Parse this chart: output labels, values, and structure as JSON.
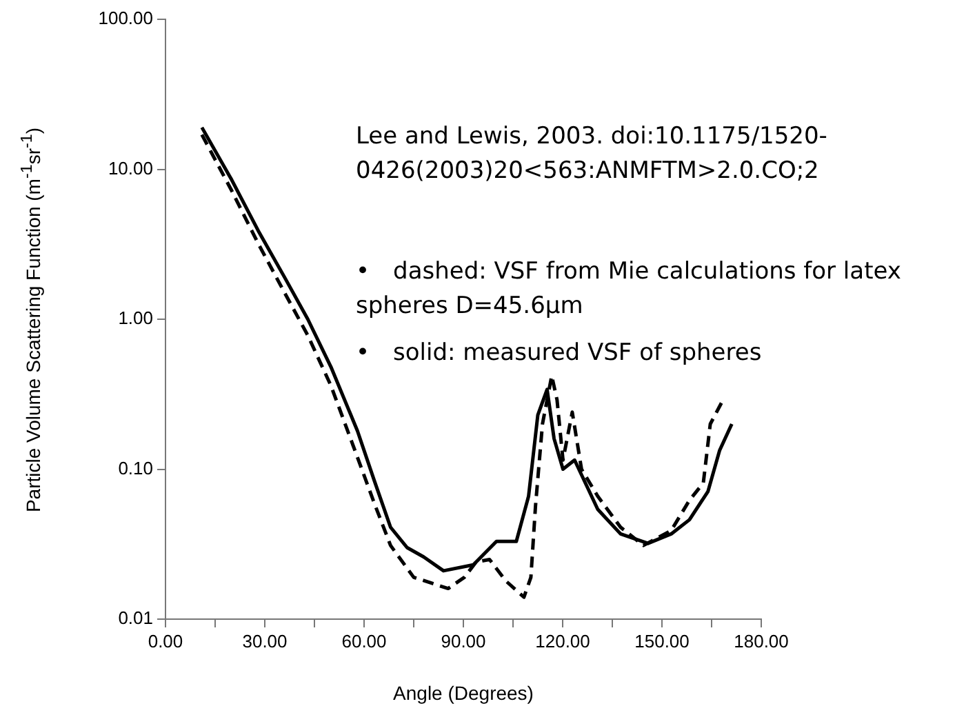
{
  "chart_data": {
    "type": "line",
    "xlabel": "Angle (Degrees)",
    "ylabel": "Particle Volume Scattering Function (m$^{-1}$sr$^{-1}$)",
    "annotations": [
      "Lee and Lewis, 2003.  doi:10.1175/1520-0426(2003)20<563:ANMFTM>2.0.CO;2",
      "• dashed: VSF from Mie calculations for latex spheres D=45.6μm",
      "• solid: measured VSF of spheres"
    ],
    "log": "y",
    "grid": false,
    "legend": false,
    "marker": "none",
    "xlim": [
      0,
      180
    ],
    "xticks": [
      {
        "value": 0,
        "label": "0.00"
      },
      {
        "value": 15,
        "label": null
      },
      {
        "value": 30,
        "label": "30.00"
      },
      {
        "value": 45,
        "label": null
      },
      {
        "value": 60,
        "label": "60.00"
      },
      {
        "value": 75,
        "label": null
      },
      {
        "value": 90,
        "label": "90.00"
      },
      {
        "value": 105,
        "label": null
      },
      {
        "value": 120,
        "label": "120.00"
      },
      {
        "value": 135,
        "label": null
      },
      {
        "value": 150,
        "label": "150.00"
      },
      {
        "value": 165,
        "label": null
      },
      {
        "value": 180,
        "label": "180.00"
      }
    ],
    "ylim": [
      0.01,
      100
    ],
    "yticks": [
      {
        "value": 0.01,
        "label": "0.01"
      },
      {
        "value": 0.1,
        "label": "0.10"
      },
      {
        "value": 1,
        "label": "1.00"
      },
      {
        "value": 10,
        "label": "10.00"
      },
      {
        "value": 100,
        "label": "100.00"
      }
    ],
    "series": [
      {
        "color": "#000000",
        "line_style": "solid",
        "x": [
          11,
          20,
          28,
          36,
          43,
          50,
          58,
          63,
          68,
          73,
          78,
          84,
          93,
          100,
          106,
          109.7,
          112.5,
          115.3,
          117.4,
          120.1,
          123.6,
          130.6,
          137.5,
          145.8,
          152.8,
          158.3,
          163.9,
          167.4,
          171.1
        ],
        "values": [
          19,
          8.5,
          3.9,
          1.9,
          1.0,
          0.48,
          0.18,
          0.085,
          0.041,
          0.03,
          0.026,
          0.021,
          0.023,
          0.033,
          0.033,
          0.066,
          0.23,
          0.34,
          0.16,
          0.1,
          0.115,
          0.054,
          0.037,
          0.032,
          0.037,
          0.046,
          0.071,
          0.133,
          0.2
        ]
      },
      {
        "color": "#000000",
        "line_style": "dashed",
        "x": [
          11,
          20,
          28,
          36,
          43,
          50,
          58,
          63,
          68,
          75,
          85.4,
          90.3,
          93.8,
          97.9,
          102.8,
          108.3,
          110.4,
          111.8,
          113.9,
          116.7,
          118.3,
          120.1,
          122.9,
          125.7,
          130.6,
          137.5,
          144.4,
          152.8,
          158.3,
          162.5,
          164.6,
          168.1
        ],
        "values": [
          17,
          7.2,
          3.2,
          1.5,
          0.78,
          0.36,
          0.12,
          0.06,
          0.031,
          0.019,
          0.016,
          0.019,
          0.024,
          0.025,
          0.018,
          0.014,
          0.019,
          0.057,
          0.2,
          0.42,
          0.29,
          0.115,
          0.24,
          0.1,
          0.066,
          0.041,
          0.031,
          0.039,
          0.062,
          0.081,
          0.2,
          0.28
        ]
      }
    ]
  }
}
